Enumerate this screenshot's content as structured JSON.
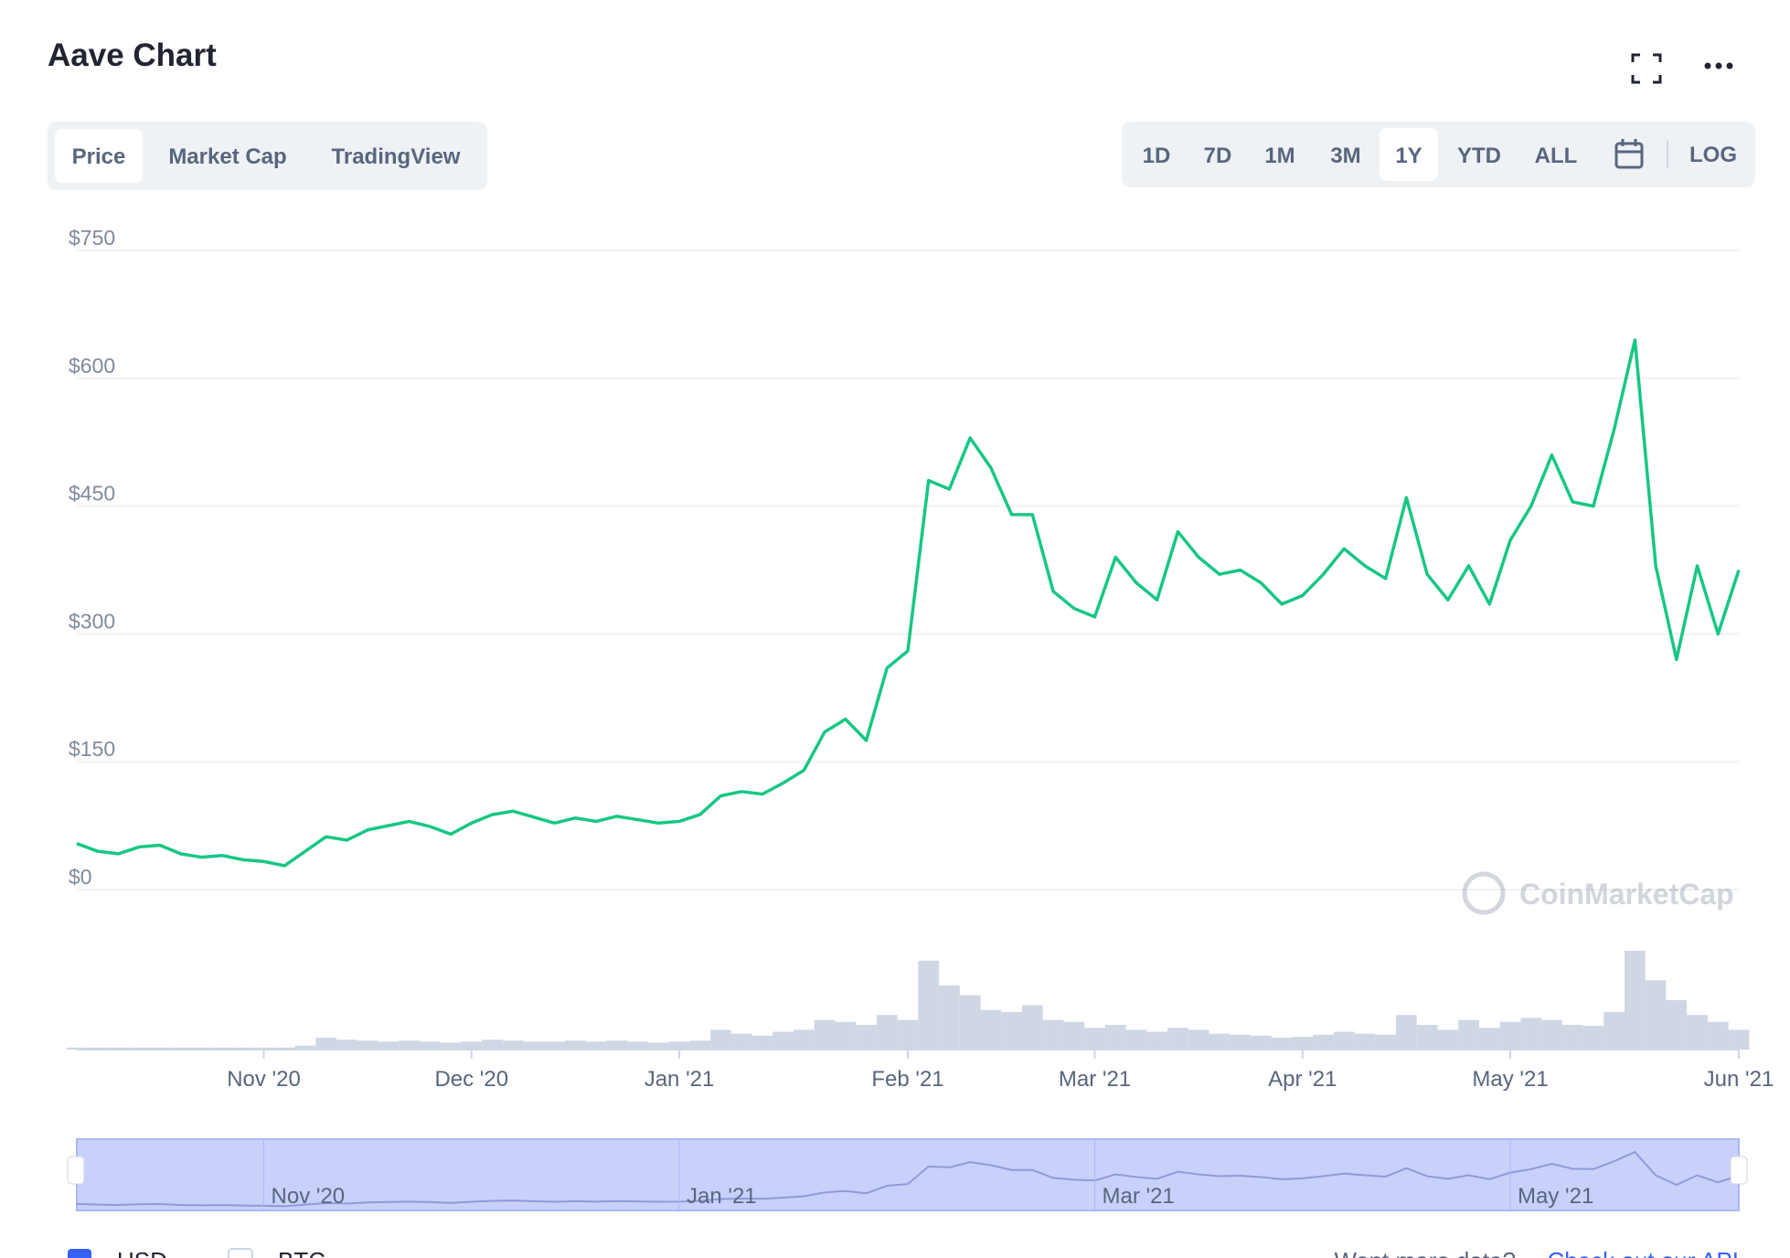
{
  "title": "Aave Chart",
  "tabs": [
    "Price",
    "Market Cap",
    "TradingView"
  ],
  "ranges": [
    "1D",
    "7D",
    "1M",
    "3M",
    "1Y",
    "YTD",
    "ALL"
  ],
  "log_button": "LOG",
  "watermark": "CoinMarketCap",
  "currencies": [
    "USD",
    "BTC"
  ],
  "footer": {
    "text": "Want more data?",
    "link": "Check out our API"
  },
  "chart_data": {
    "type": "line",
    "categories": [
      null,
      null,
      null,
      null,
      null,
      null,
      null,
      null,
      null,
      "Nov '20",
      null,
      null,
      null,
      null,
      null,
      null,
      null,
      null,
      null,
      "Dec '20",
      null,
      null,
      null,
      null,
      null,
      null,
      null,
      null,
      null,
      "Jan '21",
      null,
      null,
      null,
      null,
      null,
      null,
      null,
      null,
      null,
      null,
      "Feb '21",
      null,
      null,
      null,
      null,
      null,
      null,
      null,
      null,
      "Mar '21",
      null,
      null,
      null,
      null,
      null,
      null,
      null,
      null,
      null,
      "Apr '21",
      null,
      null,
      null,
      null,
      null,
      null,
      null,
      null,
      null,
      "May '21",
      null,
      null,
      null,
      null,
      null,
      null,
      null,
      null,
      null,
      null,
      "Jun '21"
    ],
    "values": [
      54,
      45,
      42,
      50,
      52,
      42,
      38,
      40,
      35,
      33,
      28,
      45,
      62,
      58,
      70,
      75,
      80,
      74,
      65,
      78,
      88,
      92,
      85,
      78,
      84,
      80,
      86,
      82,
      78,
      80,
      88,
      110,
      115,
      112,
      125,
      140,
      185,
      200,
      175,
      260,
      280,
      480,
      470,
      530,
      495,
      440,
      440,
      350,
      330,
      320,
      390,
      360,
      340,
      420,
      390,
      370,
      375,
      360,
      335,
      345,
      370,
      400,
      380,
      365,
      460,
      370,
      340,
      380,
      335,
      410,
      450,
      510,
      455,
      450,
      540,
      645,
      380,
      270,
      380,
      300,
      375
    ],
    "volume": [
      2,
      2,
      2,
      2,
      2,
      2,
      2,
      2,
      2,
      2,
      2,
      4,
      12,
      10,
      9,
      8,
      9,
      8,
      7,
      8,
      10,
      9,
      8,
      8,
      9,
      8,
      9,
      8,
      7,
      8,
      9,
      20,
      16,
      14,
      18,
      20,
      30,
      28,
      25,
      35,
      30,
      90,
      65,
      55,
      40,
      38,
      45,
      30,
      28,
      22,
      25,
      20,
      18,
      22,
      20,
      16,
      15,
      14,
      12,
      13,
      15,
      18,
      16,
      15,
      35,
      25,
      20,
      30,
      22,
      28,
      32,
      30,
      25,
      24,
      38,
      100,
      70,
      50,
      35,
      28,
      20
    ],
    "color": "#16c784",
    "volume_color": "#cfd6e4",
    "ylim": [
      0,
      750
    ],
    "yticks": [
      {
        "value": 0,
        "label": "$0"
      },
      {
        "value": 150,
        "label": "$150"
      },
      {
        "value": 300,
        "label": "$300"
      },
      {
        "value": 450,
        "label": "$450"
      },
      {
        "value": 600,
        "label": "$600"
      },
      {
        "value": 750,
        "label": "$750"
      }
    ],
    "grid": true,
    "navigator": [
      "Nov '20",
      "Jan '21",
      "Mar '21",
      "May '21"
    ]
  }
}
